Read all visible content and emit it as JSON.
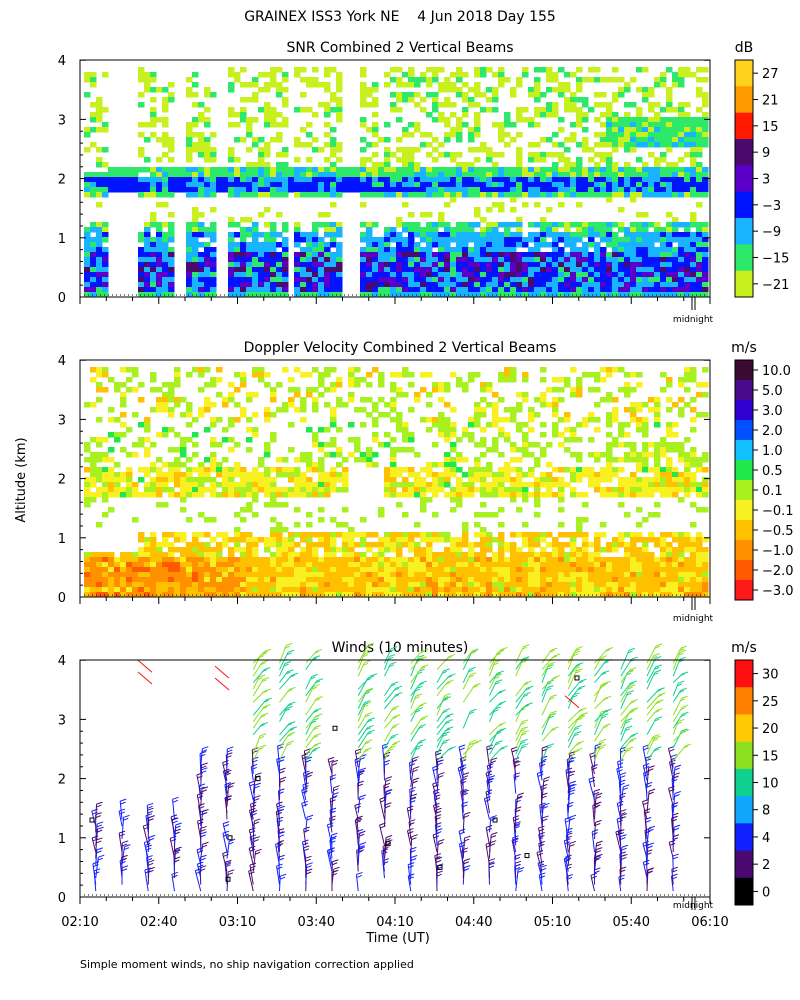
{
  "header": {
    "title": "GRAINEX ISS3 York NE    4 Jun 2018 Day 155"
  },
  "footnote": "Simple moment winds, no ship navigation correction applied",
  "common": {
    "ylabel": "Altitude (km)",
    "xlabel": "Time (UT)",
    "midnight_label": "midnight",
    "time_ticks": [
      "02:10",
      "02:40",
      "03:10",
      "03:40",
      "04:10",
      "04:40",
      "05:10",
      "05:40",
      "06:10"
    ],
    "altitude_ticks": [
      "0",
      "1",
      "2",
      "3",
      "4"
    ]
  },
  "chart_data": [
    {
      "type": "heatmap",
      "title": "SNR Combined 2 Vertical Beams",
      "units": "dB",
      "xlim": [
        "02:10",
        "06:10"
      ],
      "ylim": [
        0,
        4
      ],
      "colorbar_labels": [
        "27",
        "21",
        "15",
        "9",
        "3",
        "−3",
        "−9",
        "−15",
        "−21"
      ],
      "colorbar_colors": [
        "#ffd21e",
        "#ff9a00",
        "#ff1a00",
        "#4a0a6e",
        "#5a00c8",
        "#0014ff",
        "#19b4ff",
        "#2ee86a",
        "#c8f01e"
      ],
      "gaps_no_data": [
        [
          "02:20",
          "02:30"
        ],
        [
          "02:45",
          "02:50"
        ],
        [
          "03:00",
          "03:05"
        ],
        [
          "03:28",
          "03:30"
        ],
        [
          "03:48",
          "03:55"
        ]
      ]
    },
    {
      "type": "heatmap",
      "title": "Doppler Velocity Combined 2 Vertical Beams",
      "units": "m/s",
      "xlim": [
        "02:10",
        "06:10"
      ],
      "ylim": [
        0,
        4
      ],
      "colorbar_labels": [
        "10.0",
        "5.0",
        "3.0",
        "2.0",
        "1.0",
        "0.5",
        "0.1",
        "−0.1",
        "−0.5",
        "−1.0",
        "−2.0",
        "−3.0"
      ],
      "colorbar_colors": [
        "#3a0a30",
        "#4a0a8e",
        "#3000d0",
        "#0050ff",
        "#10c0ff",
        "#20e84a",
        "#a8f020",
        "#f8f020",
        "#ffc000",
        "#ff9000",
        "#ff5a00",
        "#ff1a1a"
      ]
    },
    {
      "type": "scatter",
      "subtype": "wind_barbs",
      "title": "Winds (10 minutes)",
      "units": "m/s",
      "xlim": [
        "02:10",
        "06:10"
      ],
      "ylim": [
        0,
        4
      ],
      "colorbar_labels": [
        "30",
        "25",
        "20",
        "15",
        "10",
        "8",
        "4",
        "2",
        "0"
      ],
      "colorbar_colors": [
        "#ff1010",
        "#ff8000",
        "#ffc800",
        "#8ce020",
        "#10d090",
        "#10a8ff",
        "#1020ff",
        "#4a0a70",
        "#000000"
      ]
    }
  ]
}
